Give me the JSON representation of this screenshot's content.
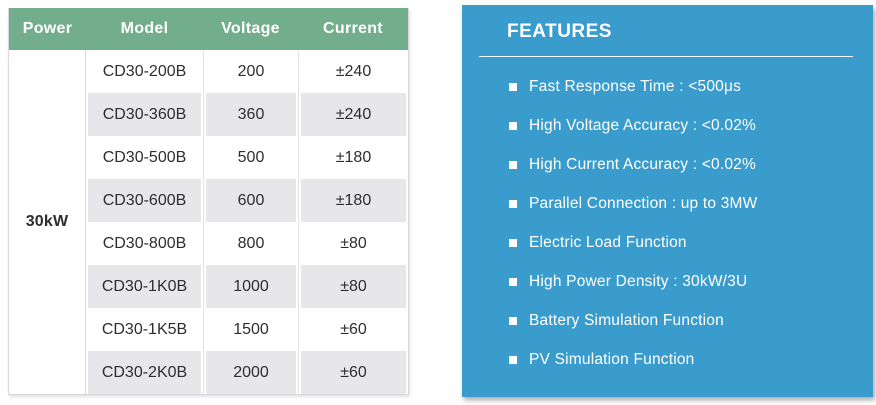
{
  "colors": {
    "header_green": "#73ae8c",
    "stripe_gray": "#e7e7ea",
    "power_navy": "#1c4063",
    "panel_blue": "#3a9ccd",
    "cell_text": "#2e2e30"
  },
  "chart_data": {
    "type": "table",
    "title": "",
    "columns": [
      "Power",
      "Model",
      "Voltage",
      "Current"
    ],
    "rows": [
      [
        "30kW",
        "CD30-200B",
        "200",
        "±240"
      ],
      [
        "30kW",
        "CD30-360B",
        "360",
        "±240"
      ],
      [
        "30kW",
        "CD30-500B",
        "500",
        "±180"
      ],
      [
        "30kW",
        "CD30-600B",
        "600",
        "±180"
      ],
      [
        "30kW",
        "CD30-800B",
        "800",
        "±80"
      ],
      [
        "30kW",
        "CD30-1K0B",
        "1000",
        "±80"
      ],
      [
        "30kW",
        "CD30-1K5B",
        "1500",
        "±60"
      ],
      [
        "30kW",
        "CD30-2K0B",
        "2000",
        "±60"
      ]
    ]
  },
  "table": {
    "headers": {
      "power": "Power",
      "model": "Model",
      "voltage": "Voltage",
      "current": "Current"
    },
    "power_group": "30kW",
    "rows": [
      {
        "model": "CD30-200B",
        "voltage": "200",
        "current": "±240"
      },
      {
        "model": "CD30-360B",
        "voltage": "360",
        "current": "±240"
      },
      {
        "model": "CD30-500B",
        "voltage": "500",
        "current": "±180"
      },
      {
        "model": "CD30-600B",
        "voltage": "600",
        "current": "±180"
      },
      {
        "model": "CD30-800B",
        "voltage": "800",
        "current": "±80"
      },
      {
        "model": "CD30-1K0B",
        "voltage": "1000",
        "current": "±80"
      },
      {
        "model": "CD30-1K5B",
        "voltage": "1500",
        "current": "±60"
      },
      {
        "model": "CD30-2K0B",
        "voltage": "2000",
        "current": "±60"
      }
    ]
  },
  "features": {
    "title": "FEATURES",
    "items": [
      "Fast Response Time : <500μs",
      "High Voltage Accuracy : <0.02%",
      "High Current Accuracy : <0.02%",
      "Parallel Connection : up to 3MW",
      "Electric Load Function",
      "High Power Density : 30kW/3U",
      "Battery Simulation Function",
      "PV Simulation Function"
    ]
  }
}
